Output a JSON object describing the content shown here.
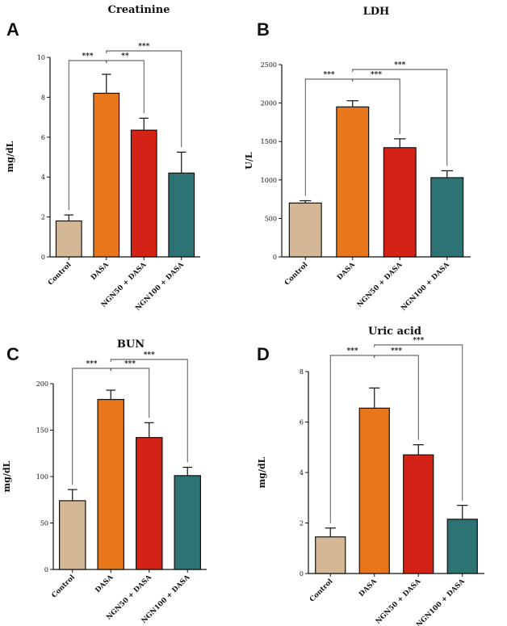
{
  "chart_data": [
    {
      "type": "bar",
      "panel": "A",
      "title": "Creatinine",
      "ylabel": "mg/dL",
      "xlabel": "",
      "ylim": [
        0,
        10
      ],
      "yticks": [
        0,
        2,
        4,
        6,
        8,
        10
      ],
      "categories": [
        "Control",
        "DASA",
        "NGN50 + DASA",
        "NGN100 + DASA"
      ],
      "values": [
        1.8,
        8.2,
        6.35,
        4.2
      ],
      "errors": [
        0.3,
        0.95,
        0.6,
        1.05
      ],
      "colors": [
        "#d4b896",
        "#e8761a",
        "#d42316",
        "#2e7373"
      ],
      "significance": [
        {
          "from": 0,
          "to": 1,
          "label": "***"
        },
        {
          "from": 1,
          "to": 2,
          "label": "**"
        },
        {
          "from": 1,
          "to": 3,
          "label": "***"
        }
      ]
    },
    {
      "type": "bar",
      "panel": "B",
      "title": "LDH",
      "ylabel": "U/L",
      "xlabel": "",
      "ylim": [
        0,
        2500
      ],
      "yticks": [
        0,
        500,
        1000,
        1500,
        2000,
        2500
      ],
      "categories": [
        "Control",
        "DASA",
        "NGN50 + DASA",
        "NGN100 + DASA"
      ],
      "values": [
        700,
        1950,
        1420,
        1030
      ],
      "errors": [
        30,
        80,
        115,
        90
      ],
      "colors": [
        "#d4b896",
        "#e8761a",
        "#d42316",
        "#2e7373"
      ],
      "significance": [
        {
          "from": 0,
          "to": 1,
          "label": "***"
        },
        {
          "from": 1,
          "to": 2,
          "label": "***"
        },
        {
          "from": 1,
          "to": 3,
          "label": "***"
        }
      ]
    },
    {
      "type": "bar",
      "panel": "C",
      "title": "BUN",
      "ylabel": "mg/dL",
      "xlabel": "",
      "ylim": [
        0,
        200
      ],
      "yticks": [
        0,
        50,
        100,
        150,
        200
      ],
      "categories": [
        "Control",
        "DASA",
        "NGN50 + DASA",
        "NGN100 + DASA"
      ],
      "values": [
        74,
        183,
        142,
        101
      ],
      "errors": [
        12,
        10,
        16,
        9
      ],
      "colors": [
        "#d4b896",
        "#e8761a",
        "#d42316",
        "#2e7373"
      ],
      "significance": [
        {
          "from": 0,
          "to": 1,
          "label": "***"
        },
        {
          "from": 1,
          "to": 2,
          "label": "***"
        },
        {
          "from": 1,
          "to": 3,
          "label": "***"
        }
      ]
    },
    {
      "type": "bar",
      "panel": "D",
      "title": "Uric acid",
      "ylabel": "mg/dL",
      "xlabel": "",
      "ylim": [
        0,
        8
      ],
      "yticks": [
        0,
        2,
        4,
        6,
        8
      ],
      "categories": [
        "Control",
        "DASA",
        "NGN50 + DASA",
        "NGN100 + DASA"
      ],
      "values": [
        1.45,
        6.55,
        4.7,
        2.15
      ],
      "errors": [
        0.35,
        0.8,
        0.4,
        0.55
      ],
      "colors": [
        "#d4b896",
        "#e8761a",
        "#d42316",
        "#2e7373"
      ],
      "significance": [
        {
          "from": 0,
          "to": 1,
          "label": "***"
        },
        {
          "from": 1,
          "to": 2,
          "label": "***"
        },
        {
          "from": 1,
          "to": 3,
          "label": "***"
        }
      ]
    }
  ]
}
